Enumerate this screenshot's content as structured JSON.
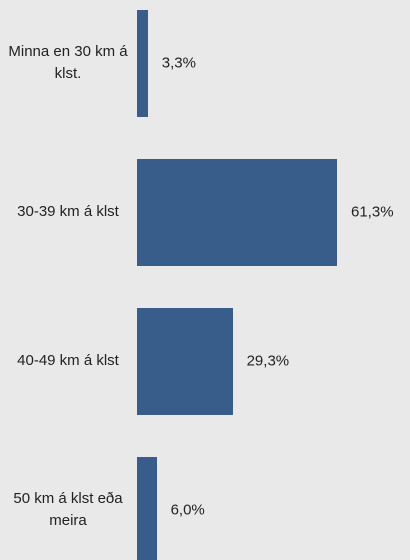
{
  "chart_data": {
    "type": "bar",
    "orientation": "horizontal",
    "categories": [
      "Minna en 30 km á klst.",
      "30-39 km á klst",
      "40-49 km á klst",
      "50 km á klst eða meira"
    ],
    "values": [
      3.3,
      61.3,
      29.3,
      6.0
    ],
    "value_labels": [
      "3,3%",
      "61,3%",
      "29,3%",
      "6,0%"
    ],
    "color": "#385d8a"
  }
}
